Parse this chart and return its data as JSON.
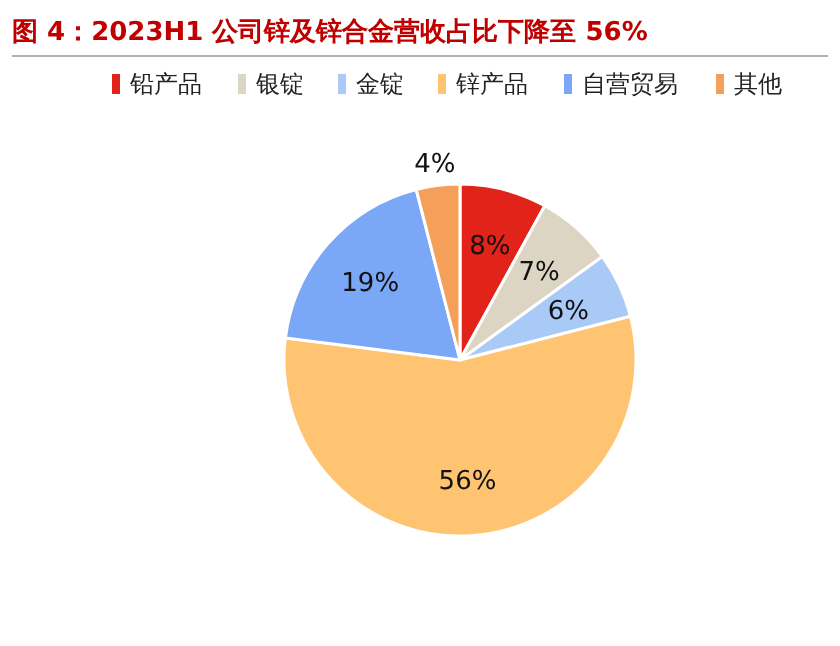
{
  "chart_data": {
    "type": "pie",
    "title": "图 4：2023H1 公司锌及锌合金营收占比下降至 56%",
    "categories": [
      "铅产品",
      "银锭",
      "金锭",
      "锌产品",
      "自营贸易",
      "其他"
    ],
    "values": [
      8,
      7,
      6,
      56,
      19,
      4
    ],
    "value_labels": [
      "8%",
      "7%",
      "6%",
      "56%",
      "19%",
      "4%"
    ],
    "colors": [
      "#e2231a",
      "#ddd5c4",
      "#a9c9f7",
      "#ffc471",
      "#7ba7f7",
      "#f5a05a"
    ],
    "legend": "top"
  }
}
